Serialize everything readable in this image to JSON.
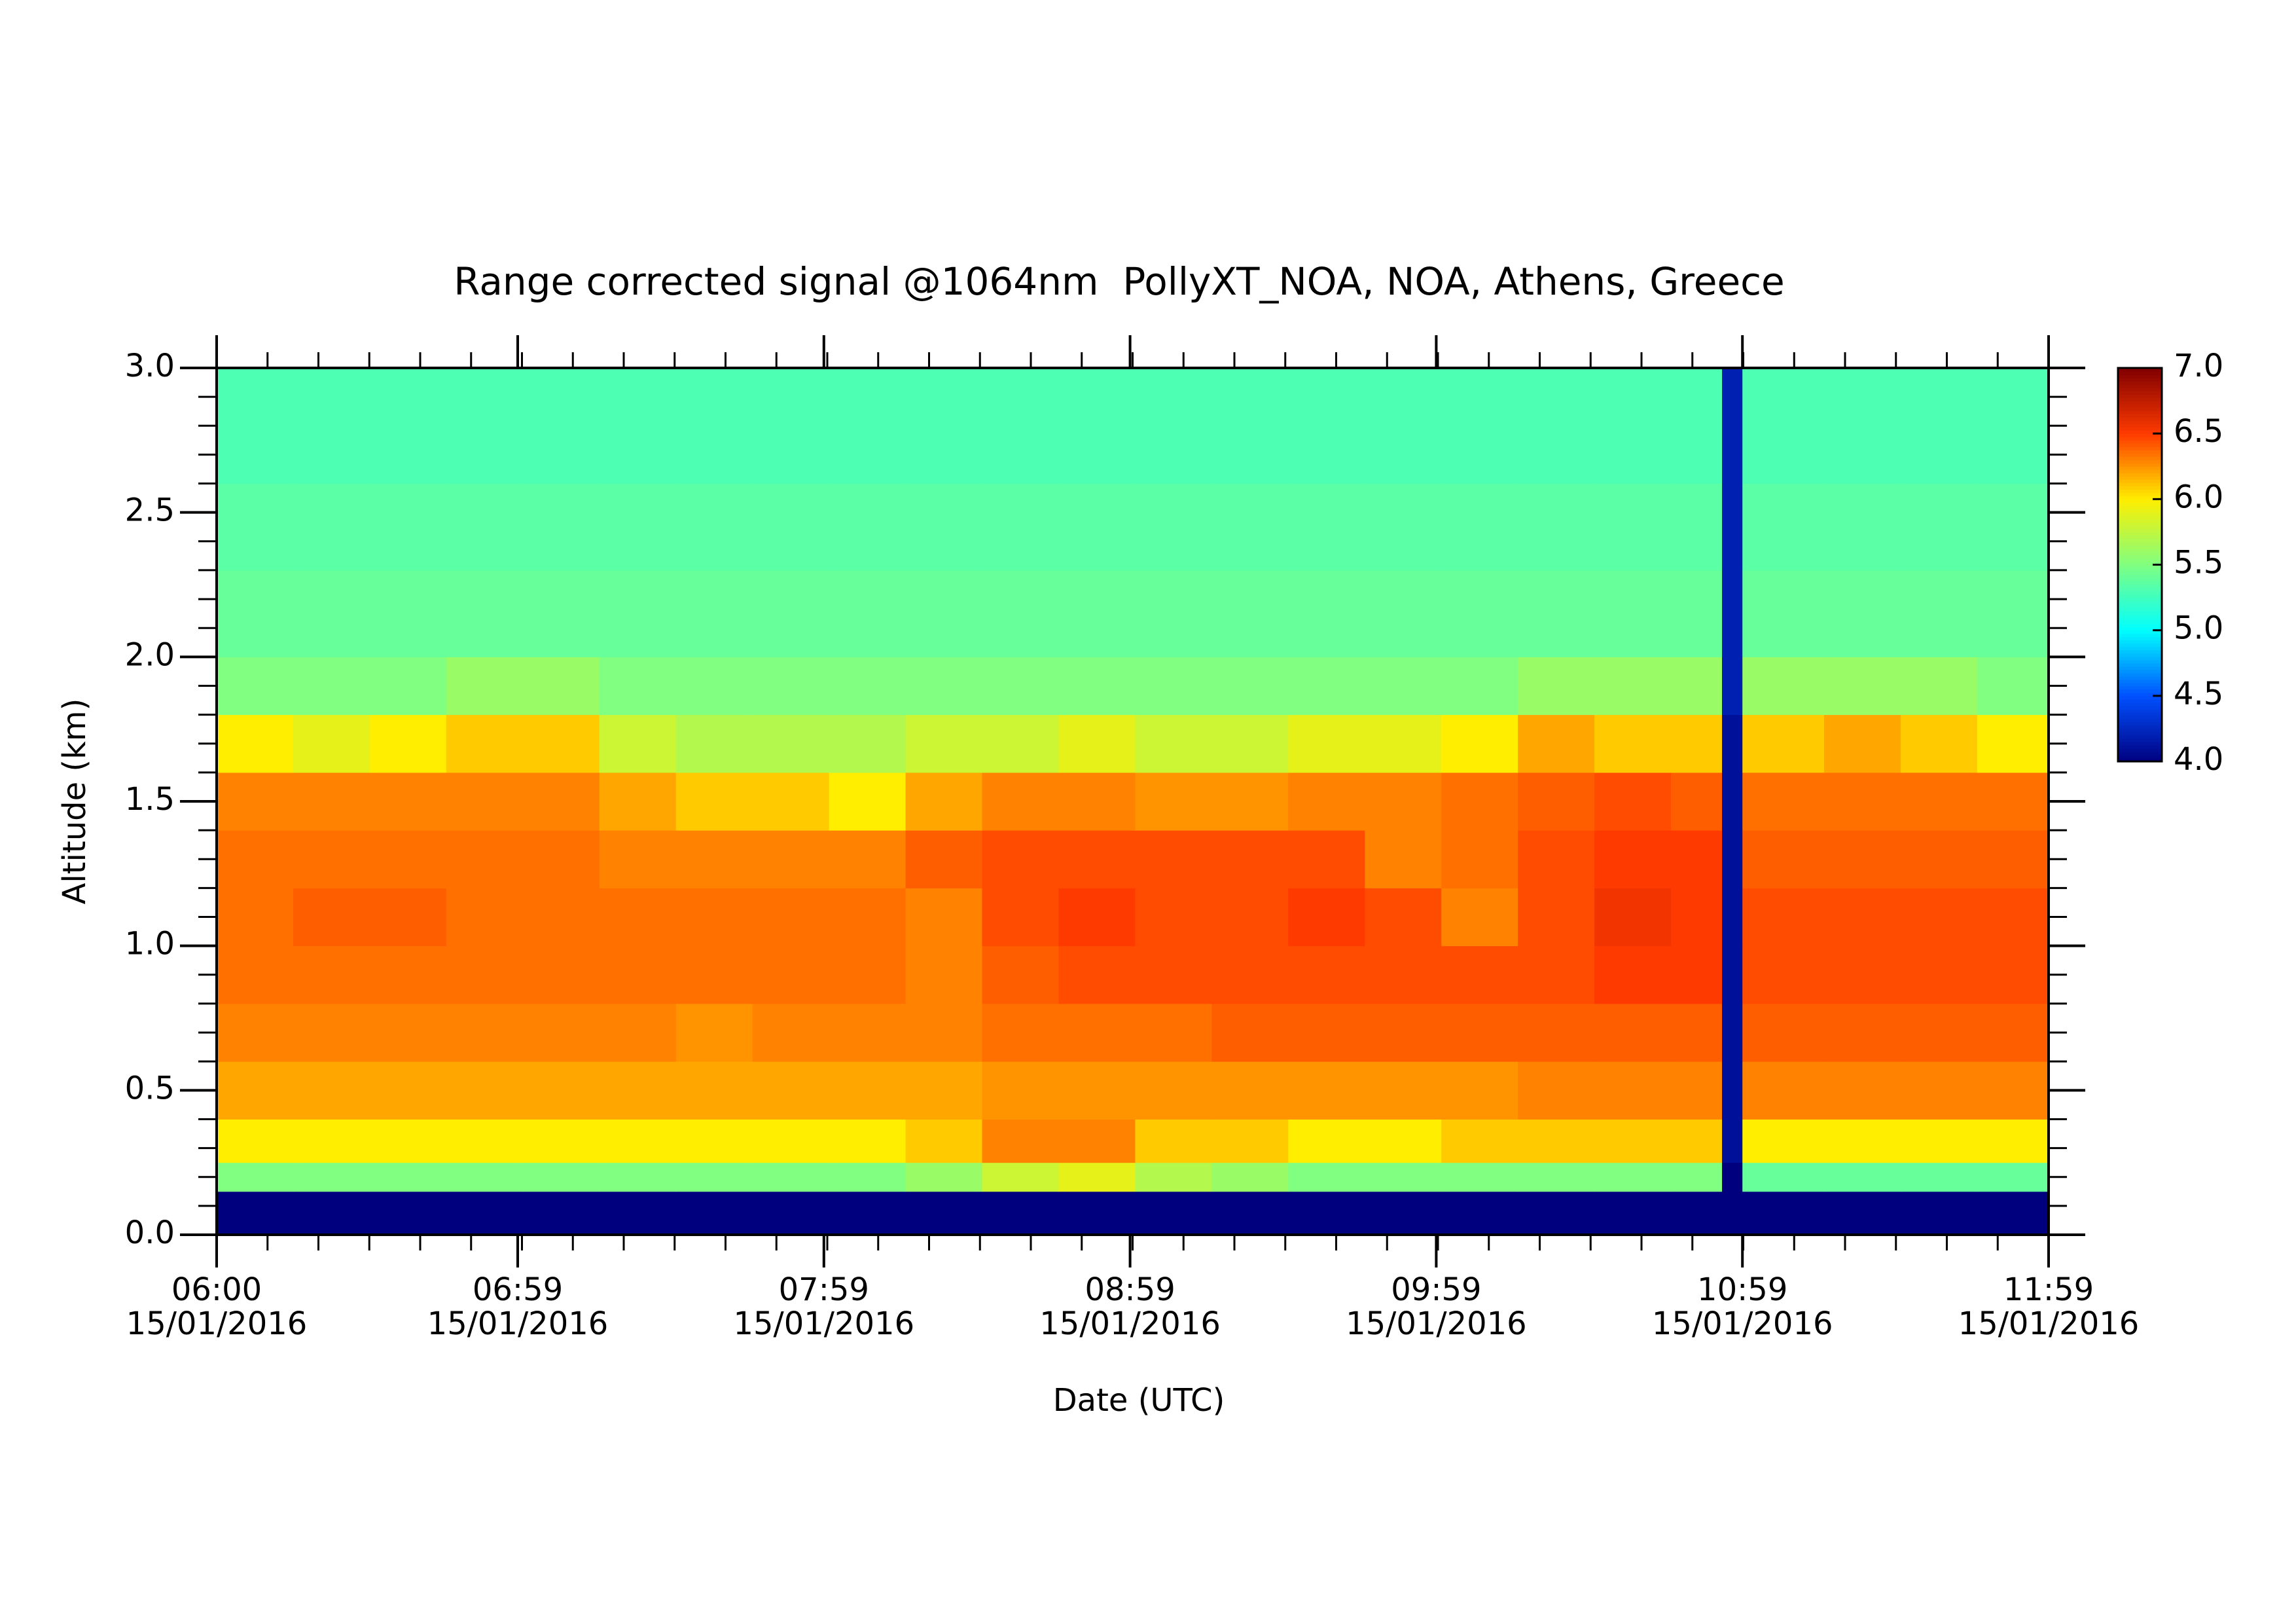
{
  "chart_data": {
    "type": "heatmap",
    "title": "Range corrected signal @1064nm  PollyXT_NOA, NOA, Athens, Greece",
    "x_label": "Date (UTC)",
    "y_label": "Altitude (km)",
    "x_bins": [
      360,
      375,
      390,
      405,
      420,
      435,
      450,
      465,
      480,
      495,
      510,
      525,
      540,
      555,
      570,
      585,
      600,
      615,
      630,
      645,
      655,
      659,
      675,
      690,
      705,
      719
    ],
    "y_bins": [
      0,
      0.15,
      0.25,
      0.4,
      0.6,
      0.8,
      1.0,
      1.2,
      1.4,
      1.6,
      1.8,
      2.0,
      2.3,
      2.6,
      3.0
    ],
    "values": [
      [
        4.0,
        4.0,
        4.0,
        4.0,
        4.0,
        4.0,
        4.0,
        4.0,
        4.0,
        4.0,
        4.0,
        4.0,
        4.0,
        4.0,
        4.0,
        4.0,
        4.0,
        4.0,
        4.0,
        4.0,
        4.0,
        4.0,
        4.0,
        4.0,
        4.0
      ],
      [
        5.5,
        5.5,
        5.5,
        5.5,
        5.5,
        5.5,
        5.5,
        5.5,
        5.5,
        5.6,
        5.8,
        5.9,
        5.7,
        5.6,
        5.5,
        5.5,
        5.5,
        5.5,
        5.5,
        5.5,
        4.0,
        5.4,
        5.4,
        5.4,
        5.4
      ],
      [
        6.0,
        6.0,
        6.0,
        6.0,
        6.0,
        6.0,
        6.0,
        6.0,
        6.0,
        6.1,
        6.3,
        6.3,
        6.1,
        6.1,
        6.0,
        6.0,
        6.1,
        6.1,
        6.1,
        6.1,
        4.1,
        6.0,
        6.0,
        6.0,
        6.0
      ],
      [
        6.2,
        6.2,
        6.2,
        6.2,
        6.2,
        6.2,
        6.2,
        6.2,
        6.2,
        6.2,
        6.25,
        6.25,
        6.25,
        6.25,
        6.25,
        6.25,
        6.25,
        6.3,
        6.3,
        6.3,
        4.1,
        6.3,
        6.3,
        6.3,
        6.3
      ],
      [
        6.3,
        6.3,
        6.3,
        6.3,
        6.3,
        6.3,
        6.25,
        6.3,
        6.3,
        6.3,
        6.35,
        6.35,
        6.35,
        6.4,
        6.4,
        6.4,
        6.4,
        6.4,
        6.4,
        6.4,
        4.1,
        6.4,
        6.4,
        6.4,
        6.4
      ],
      [
        6.35,
        6.35,
        6.35,
        6.35,
        6.35,
        6.35,
        6.35,
        6.35,
        6.35,
        6.3,
        6.4,
        6.45,
        6.45,
        6.45,
        6.45,
        6.45,
        6.45,
        6.45,
        6.5,
        6.5,
        4.1,
        6.45,
        6.45,
        6.45,
        6.45
      ],
      [
        6.35,
        6.4,
        6.4,
        6.35,
        6.35,
        6.35,
        6.35,
        6.35,
        6.35,
        6.3,
        6.45,
        6.5,
        6.45,
        6.45,
        6.5,
        6.45,
        6.3,
        6.45,
        6.55,
        6.5,
        4.1,
        6.45,
        6.45,
        6.45,
        6.45
      ],
      [
        6.35,
        6.35,
        6.35,
        6.35,
        6.35,
        6.3,
        6.3,
        6.3,
        6.3,
        6.4,
        6.45,
        6.45,
        6.45,
        6.45,
        6.45,
        6.3,
        6.35,
        6.45,
        6.5,
        6.5,
        4.1,
        6.4,
        6.4,
        6.4,
        6.4
      ],
      [
        6.3,
        6.3,
        6.3,
        6.3,
        6.3,
        6.2,
        6.1,
        6.1,
        6.0,
        6.2,
        6.3,
        6.3,
        6.25,
        6.25,
        6.3,
        6.3,
        6.35,
        6.4,
        6.45,
        6.4,
        4.1,
        6.35,
        6.35,
        6.35,
        6.35
      ],
      [
        6.0,
        5.9,
        6.0,
        6.1,
        6.1,
        5.8,
        5.7,
        5.7,
        5.7,
        5.8,
        5.8,
        5.9,
        5.8,
        5.8,
        5.9,
        5.9,
        6.0,
        6.2,
        6.1,
        6.1,
        4.1,
        6.1,
        6.2,
        6.1,
        6.0
      ],
      [
        5.5,
        5.5,
        5.5,
        5.6,
        5.6,
        5.5,
        5.5,
        5.5,
        5.5,
        5.5,
        5.5,
        5.5,
        5.5,
        5.5,
        5.5,
        5.5,
        5.5,
        5.6,
        5.6,
        5.6,
        4.2,
        5.6,
        5.6,
        5.6,
        5.5
      ],
      [
        5.4,
        5.4,
        5.4,
        5.4,
        5.4,
        5.4,
        5.4,
        5.4,
        5.4,
        5.4,
        5.4,
        5.4,
        5.4,
        5.4,
        5.4,
        5.4,
        5.4,
        5.4,
        5.4,
        5.4,
        4.2,
        5.4,
        5.4,
        5.4,
        5.4
      ],
      [
        5.35,
        5.35,
        5.35,
        5.35,
        5.35,
        5.35,
        5.35,
        5.35,
        5.35,
        5.35,
        5.35,
        5.35,
        5.35,
        5.35,
        5.35,
        5.35,
        5.35,
        5.35,
        5.35,
        5.35,
        4.2,
        5.35,
        5.35,
        5.35,
        5.35
      ],
      [
        5.3,
        5.3,
        5.3,
        5.3,
        5.3,
        5.3,
        5.3,
        5.3,
        5.3,
        5.3,
        5.3,
        5.3,
        5.3,
        5.3,
        5.3,
        5.3,
        5.3,
        5.3,
        5.3,
        5.3,
        4.2,
        5.3,
        5.3,
        5.3,
        5.3
      ]
    ],
    "xlim": [
      360,
      719
    ],
    "ylim": [
      0,
      3
    ],
    "xticks": [
      {
        "value": 360,
        "label": "06:00\n15/01/2016"
      },
      {
        "value": 419,
        "label": "06:59\n15/01/2016"
      },
      {
        "value": 479,
        "label": "07:59\n15/01/2016"
      },
      {
        "value": 539,
        "label": "08:59\n15/01/2016"
      },
      {
        "value": 599,
        "label": "09:59\n15/01/2016"
      },
      {
        "value": 659,
        "label": "10:59\n15/01/2016"
      },
      {
        "value": 719,
        "label": "11:59\n15/01/2016"
      }
    ],
    "yticks": [
      {
        "value": 0,
        "label": "0.0"
      },
      {
        "value": 0.5,
        "label": "0.5"
      },
      {
        "value": 1,
        "label": "1.0"
      },
      {
        "value": 1.5,
        "label": "1.5"
      },
      {
        "value": 2,
        "label": "2.0"
      },
      {
        "value": 2.5,
        "label": "2.5"
      },
      {
        "value": 3,
        "label": "3.0"
      }
    ],
    "clim": [
      4,
      7
    ],
    "cticks": [
      {
        "value": 4,
        "label": "4.0"
      },
      {
        "value": 4.5,
        "label": "4.5"
      },
      {
        "value": 5,
        "label": "5.0"
      },
      {
        "value": 5.5,
        "label": "5.5"
      },
      {
        "value": 6,
        "label": "6.0"
      },
      {
        "value": 6.5,
        "label": "6.5"
      },
      {
        "value": 7,
        "label": "7.0"
      }
    ],
    "colorscale": [
      "#00007f",
      "#0050ff",
      "#00ffff",
      "#80ff80",
      "#ffee00",
      "#ff3a00",
      "#800000"
    ]
  }
}
